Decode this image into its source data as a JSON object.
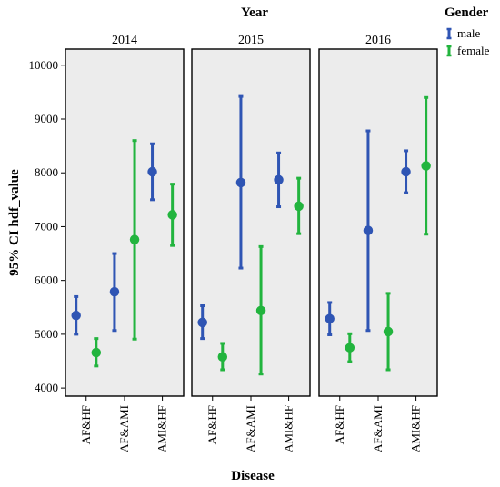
{
  "chart_data": {
    "type": "errorbar",
    "title": "Year",
    "xlabel": "Disease",
    "ylabel": "95% CI hdf_value",
    "ylim": [
      3850,
      10300
    ],
    "yticks": [
      4000,
      5000,
      6000,
      7000,
      8000,
      9000,
      10000
    ],
    "grid": false,
    "legend": {
      "title": "Gender",
      "placement": "top-right"
    },
    "categories": [
      "AF&HF",
      "AF&AMI",
      "AMI&HF"
    ],
    "facets": [
      "2014",
      "2015",
      "2016"
    ],
    "series": [
      {
        "name": "male",
        "color": "#2f55b4",
        "data": {
          "2014": [
            {
              "mean": 5350,
              "low": 5000,
              "high": 5700
            },
            {
              "mean": 5790,
              "low": 5070,
              "high": 6500
            },
            {
              "mean": 8020,
              "low": 7500,
              "high": 8540
            }
          ],
          "2015": [
            {
              "mean": 5220,
              "low": 4920,
              "high": 5530
            },
            {
              "mean": 7820,
              "low": 6230,
              "high": 9420
            },
            {
              "mean": 7870,
              "low": 7370,
              "high": 8370
            }
          ],
          "2016": [
            {
              "mean": 5290,
              "low": 4990,
              "high": 5590
            },
            {
              "mean": 6930,
              "low": 5070,
              "high": 8780
            },
            {
              "mean": 8020,
              "low": 7630,
              "high": 8410
            }
          ]
        }
      },
      {
        "name": "female",
        "color": "#22b43e",
        "data": {
          "2014": [
            {
              "mean": 4660,
              "low": 4410,
              "high": 4920
            },
            {
              "mean": 6760,
              "low": 4910,
              "high": 8600
            },
            {
              "mean": 7220,
              "low": 6650,
              "high": 7790
            }
          ],
          "2015": [
            {
              "mean": 4580,
              "low": 4340,
              "high": 4830
            },
            {
              "mean": 5440,
              "low": 4260,
              "high": 6630
            },
            {
              "mean": 7380,
              "low": 6870,
              "high": 7900
            }
          ],
          "2016": [
            {
              "mean": 4750,
              "low": 4490,
              "high": 5010
            },
            {
              "mean": 5050,
              "low": 4340,
              "high": 5760
            },
            {
              "mean": 8130,
              "low": 6860,
              "high": 9400
            }
          ]
        }
      }
    ]
  }
}
